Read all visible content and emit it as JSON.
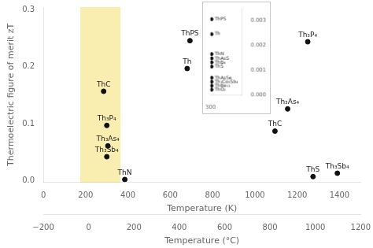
{
  "chart_data": [
    {
      "type": "scatter",
      "x": [
        285,
        300,
        305,
        300,
        385,
        693,
        680,
        1250,
        1155,
        1095,
        1275,
        1390
      ],
      "values": [
        0.157,
        0.097,
        0.061,
        0.042,
        0.002,
        0.246,
        0.197,
        0.244,
        0.126,
        0.087,
        0.007,
        0.013
      ],
      "point_labels": [
        "ThC",
        "Th₃P₄",
        "Th₃As₄",
        "Th₃Sb₄",
        "ThN",
        "ThPS",
        "Th",
        "Th₃P₄",
        "Th₃As₄",
        "ThC",
        "ThS",
        "Th₃Sb₄"
      ],
      "color": "#111111",
      "xlabel": "Temperature (K)",
      "ylabel": "Thermoelectric figure of merit zT",
      "xlim": [
        0,
        1500
      ],
      "xticks": [
        0,
        200,
        400,
        600,
        800,
        1000,
        1200,
        1400
      ],
      "ylim": [
        -0.003,
        0.305
      ],
      "yticks": [
        {
          "value": 0.0,
          "label": "0.0"
        },
        0.1,
        0.2,
        0.3
      ],
      "x2label": "Temperature (°C)",
      "x2lim": [
        -200,
        1200
      ],
      "x2ticks": [
        {
          "value": -200,
          "label": "−200"
        },
        0,
        200,
        400,
        600,
        800,
        1000,
        1200
      ],
      "shading": {
        "x": [
          175,
          365
        ],
        "color": "#faedb0"
      },
      "grid": false
    },
    {
      "type": "scatter",
      "x": [
        308,
        308,
        308,
        308,
        308,
        308,
        308,
        308,
        308,
        308
      ],
      "values": [
        0.00305,
        0.00245,
        0.00165,
        0.00148,
        0.00132,
        0.00115,
        0.0007,
        0.00054,
        0.00038,
        0.00022
      ],
      "point_labels": [
        "ThPS",
        "Th",
        "ThN",
        "ThAsS",
        "ThB₄",
        "ThS",
        "ThAsSe",
        "Th₃Co₂Sb₄",
        "ThBe₁₃",
        "ThO₂"
      ],
      "color": "#111111",
      "xlim": [
        300,
        520
      ],
      "xticks": [
        300
      ],
      "ylim": [
        0.0,
        0.0035
      ],
      "yticks": [
        {
          "value": 0.0,
          "label": "0.000"
        },
        0.001,
        0.002,
        0.003
      ],
      "grid": false
    }
  ]
}
